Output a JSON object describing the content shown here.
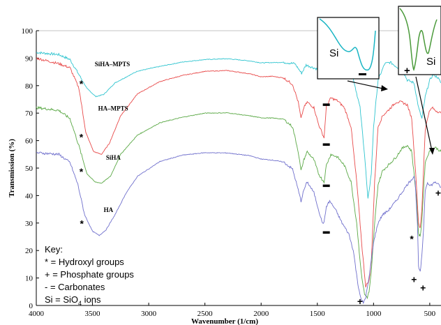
{
  "chart_data": {
    "type": "line",
    "xlabel": "Wavenumber (1/cm)",
    "ylabel": "Transmission (%)",
    "xlim": [
      4000,
      400
    ],
    "ylim": [
      0,
      100
    ],
    "x_ticks": [
      4000,
      3500,
      3000,
      2500,
      2000,
      1500,
      1000,
      500
    ],
    "y_ticks": [
      0,
      10,
      20,
      30,
      40,
      50,
      60,
      70,
      80,
      90,
      100
    ],
    "grid": false,
    "series": [
      {
        "name": "SiHA–MPTS",
        "color": "#2ec4cf",
        "points": [
          [
            4000,
            92.1
          ],
          [
            3800,
            91.3
          ],
          [
            3700,
            89.5
          ],
          [
            3620,
            84
          ],
          [
            3550,
            79
          ],
          [
            3470,
            76
          ],
          [
            3400,
            76.8
          ],
          [
            3300,
            81
          ],
          [
            3100,
            85.3
          ],
          [
            2900,
            87
          ],
          [
            2700,
            88.6
          ],
          [
            2500,
            89.5
          ],
          [
            2300,
            89.8
          ],
          [
            2100,
            89
          ],
          [
            2000,
            88.3
          ],
          [
            1800,
            88.5
          ],
          [
            1700,
            88
          ],
          [
            1640,
            84.5
          ],
          [
            1600,
            87.5
          ],
          [
            1500,
            86
          ],
          [
            1460,
            84
          ],
          [
            1430,
            83
          ],
          [
            1400,
            87
          ],
          [
            1300,
            89
          ],
          [
            1200,
            86
          ],
          [
            1120,
            72
          ],
          [
            1080,
            55
          ],
          [
            1050,
            38.5
          ],
          [
            1020,
            48
          ],
          [
            1000,
            65
          ],
          [
            960,
            82
          ],
          [
            900,
            88
          ],
          [
            850,
            88.5
          ],
          [
            800,
            87
          ],
          [
            740,
            85.5
          ],
          [
            700,
            82
          ],
          [
            640,
            81
          ],
          [
            600,
            72
          ],
          [
            570,
            68
          ],
          [
            540,
            76
          ],
          [
            500,
            82
          ],
          [
            470,
            84
          ],
          [
            430,
            83
          ],
          [
            400,
            81
          ]
        ]
      },
      {
        "name": "HA–MPTS",
        "color": "#e84a4a",
        "points": [
          [
            4000,
            90
          ],
          [
            3800,
            88
          ],
          [
            3700,
            86.5
          ],
          [
            3620,
            79
          ],
          [
            3560,
            63
          ],
          [
            3490,
            56
          ],
          [
            3420,
            55
          ],
          [
            3350,
            59
          ],
          [
            3250,
            69
          ],
          [
            3100,
            77
          ],
          [
            2900,
            81.5
          ],
          [
            2700,
            83.7
          ],
          [
            2500,
            85.2
          ],
          [
            2300,
            85.5
          ],
          [
            2100,
            84.3
          ],
          [
            2000,
            83.2
          ],
          [
            1900,
            83.4
          ],
          [
            1800,
            82.8
          ],
          [
            1720,
            80.5
          ],
          [
            1670,
            74
          ],
          [
            1645,
            68
          ],
          [
            1620,
            72
          ],
          [
            1590,
            74
          ],
          [
            1530,
            72
          ],
          [
            1490,
            66
          ],
          [
            1460,
            63
          ],
          [
            1440,
            61
          ],
          [
            1420,
            72.5
          ],
          [
            1380,
            75.5
          ],
          [
            1320,
            74.5
          ],
          [
            1260,
            72
          ],
          [
            1200,
            65
          ],
          [
            1150,
            45
          ],
          [
            1100,
            20
          ],
          [
            1070,
            7
          ],
          [
            1040,
            9
          ],
          [
            1020,
            16
          ],
          [
            990,
            45
          ],
          [
            960,
            65
          ],
          [
            920,
            69
          ],
          [
            870,
            71
          ],
          [
            800,
            74
          ],
          [
            750,
            74
          ],
          [
            700,
            73
          ],
          [
            660,
            68
          ],
          [
            620,
            45
          ],
          [
            600,
            30
          ],
          [
            585,
            28
          ],
          [
            570,
            35
          ],
          [
            555,
            50
          ],
          [
            540,
            64
          ],
          [
            510,
            70
          ],
          [
            480,
            72
          ],
          [
            450,
            71
          ],
          [
            400,
            70
          ]
        ]
      },
      {
        "name": "SiHA",
        "color": "#5aa845",
        "points": [
          [
            4000,
            72
          ],
          [
            3800,
            71
          ],
          [
            3700,
            68
          ],
          [
            3620,
            58
          ],
          [
            3550,
            48
          ],
          [
            3480,
            45
          ],
          [
            3420,
            44.5
          ],
          [
            3340,
            47
          ],
          [
            3250,
            55
          ],
          [
            3100,
            62
          ],
          [
            2900,
            66.5
          ],
          [
            2700,
            68.5
          ],
          [
            2500,
            70
          ],
          [
            2300,
            70.1
          ],
          [
            2100,
            69
          ],
          [
            2000,
            68.3
          ],
          [
            1900,
            68.2
          ],
          [
            1800,
            67.8
          ],
          [
            1720,
            65
          ],
          [
            1670,
            56
          ],
          [
            1645,
            49
          ],
          [
            1620,
            53
          ],
          [
            1590,
            56
          ],
          [
            1530,
            53
          ],
          [
            1490,
            48
          ],
          [
            1460,
            46
          ],
          [
            1440,
            45
          ],
          [
            1420,
            51
          ],
          [
            1380,
            55
          ],
          [
            1320,
            54
          ],
          [
            1260,
            51
          ],
          [
            1200,
            45
          ],
          [
            1150,
            30
          ],
          [
            1110,
            12
          ],
          [
            1080,
            4
          ],
          [
            1055,
            3
          ],
          [
            1040,
            5
          ],
          [
            1020,
            12
          ],
          [
            990,
            30
          ],
          [
            960,
            44
          ],
          [
            920,
            49
          ],
          [
            870,
            51
          ],
          [
            800,
            54
          ],
          [
            750,
            57
          ],
          [
            700,
            58.3
          ],
          [
            660,
            56
          ],
          [
            620,
            40
          ],
          [
            600,
            26
          ],
          [
            585,
            25
          ],
          [
            570,
            31
          ],
          [
            555,
            42
          ],
          [
            540,
            52
          ],
          [
            510,
            55.5
          ],
          [
            480,
            57
          ],
          [
            450,
            57.5
          ],
          [
            400,
            56
          ]
        ]
      },
      {
        "name": "HA",
        "color": "#6f6fcc",
        "points": [
          [
            4000,
            55.6
          ],
          [
            3800,
            55
          ],
          [
            3700,
            52
          ],
          [
            3630,
            44
          ],
          [
            3570,
            33
          ],
          [
            3500,
            27
          ],
          [
            3440,
            25.5
          ],
          [
            3380,
            27.5
          ],
          [
            3300,
            33
          ],
          [
            3200,
            41
          ],
          [
            3100,
            47
          ],
          [
            2900,
            52.4
          ],
          [
            2700,
            54.7
          ],
          [
            2500,
            55.6
          ],
          [
            2300,
            55.5
          ],
          [
            2100,
            54.5
          ],
          [
            2000,
            53.3
          ],
          [
            1900,
            52.9
          ],
          [
            1800,
            52.2
          ],
          [
            1720,
            49.6
          ],
          [
            1670,
            42
          ],
          [
            1645,
            38
          ],
          [
            1620,
            42
          ],
          [
            1590,
            45
          ],
          [
            1530,
            41
          ],
          [
            1490,
            35
          ],
          [
            1460,
            30.5
          ],
          [
            1440,
            30
          ],
          [
            1420,
            36
          ],
          [
            1390,
            38
          ],
          [
            1340,
            35
          ],
          [
            1280,
            30
          ],
          [
            1220,
            26
          ],
          [
            1180,
            20
          ],
          [
            1140,
            8
          ],
          [
            1110,
            2
          ],
          [
            1090,
            1
          ],
          [
            1070,
            3
          ],
          [
            1040,
            10
          ],
          [
            1000,
            23
          ],
          [
            960,
            30
          ],
          [
            920,
            33
          ],
          [
            870,
            34.5
          ],
          [
            800,
            38
          ],
          [
            750,
            41
          ],
          [
            700,
            44
          ],
          [
            660,
            46
          ],
          [
            640,
            47
          ],
          [
            630,
            45
          ],
          [
            610,
            30
          ],
          [
            600,
            14
          ],
          [
            585,
            12
          ],
          [
            570,
            18
          ],
          [
            555,
            28
          ],
          [
            540,
            42
          ],
          [
            520,
            45
          ],
          [
            500,
            43.5
          ],
          [
            480,
            44
          ],
          [
            450,
            45
          ],
          [
            400,
            43
          ]
        ]
      }
    ]
  },
  "curve_labels": [
    {
      "name": "SiHA–MPTS",
      "anchor": [
        3480,
        87
      ]
    },
    {
      "name": "HA–MPTS",
      "anchor": [
        3450,
        71
      ]
    },
    {
      "name": "SiHA",
      "anchor": [
        3380,
        53
      ]
    },
    {
      "name": "HA",
      "anchor": [
        3400,
        34
      ]
    }
  ],
  "annotations": {
    "hydroxyl_symbol": "*",
    "phosphate_symbol": "+",
    "carbonate_symbol": "–",
    "inset_label": "Si",
    "hydroxyl_marks": [
      [
        3600,
        79.5
      ],
      [
        3600,
        60
      ],
      [
        3600,
        47.5
      ],
      [
        3595,
        28.5
      ],
      [
        660,
        23
      ]
    ],
    "carbonate_marks": [
      [
        1420,
        73
      ],
      [
        1420,
        58.5
      ],
      [
        1420,
        43.5
      ],
      [
        1420,
        26.5
      ]
    ],
    "phosphate_marks": [
      [
        1120,
        1.5
      ],
      [
        640,
        9.5
      ],
      [
        560,
        6.5
      ],
      [
        425,
        41
      ]
    ]
  },
  "key": {
    "title": "Key:",
    "items": [
      "* = Hydroxyl groups",
      "+ = Phosphate groups",
      "-  = Carbonates",
      "Si = SiO"
    ],
    "items_subscript": "4",
    "items_suffix": " ions"
  }
}
